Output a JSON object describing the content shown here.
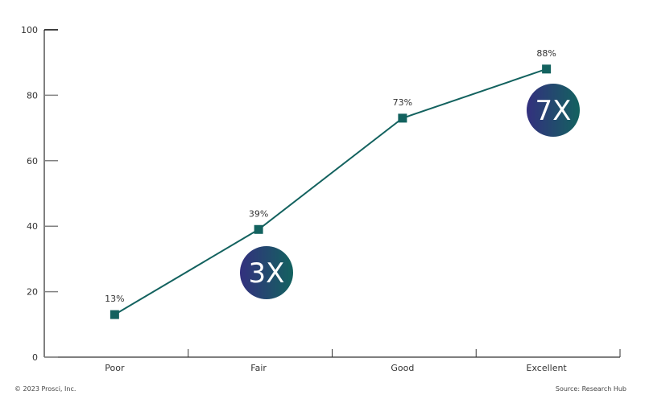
{
  "chart_data": {
    "type": "line",
    "categories": [
      "Poor",
      "Fair",
      "Good",
      "Excellent"
    ],
    "values": [
      13,
      39,
      73,
      88
    ],
    "data_labels": [
      "13%",
      "39%",
      "73%",
      "88%"
    ],
    "ylim": [
      0,
      100
    ],
    "yticks": [
      0,
      20,
      40,
      60,
      80,
      100
    ],
    "xlabel": "",
    "ylabel": "",
    "grid": false,
    "line_color": "#13625f",
    "annotations": [
      {
        "text": "3X",
        "category": "Fair"
      },
      {
        "text": "7X",
        "category": "Excellent"
      }
    ],
    "bubble_gradient": [
      "#33307e",
      "#13625f"
    ]
  },
  "footer": {
    "copyright": "© 2023 Prosci, Inc.",
    "source": "Source: Research Hub"
  }
}
